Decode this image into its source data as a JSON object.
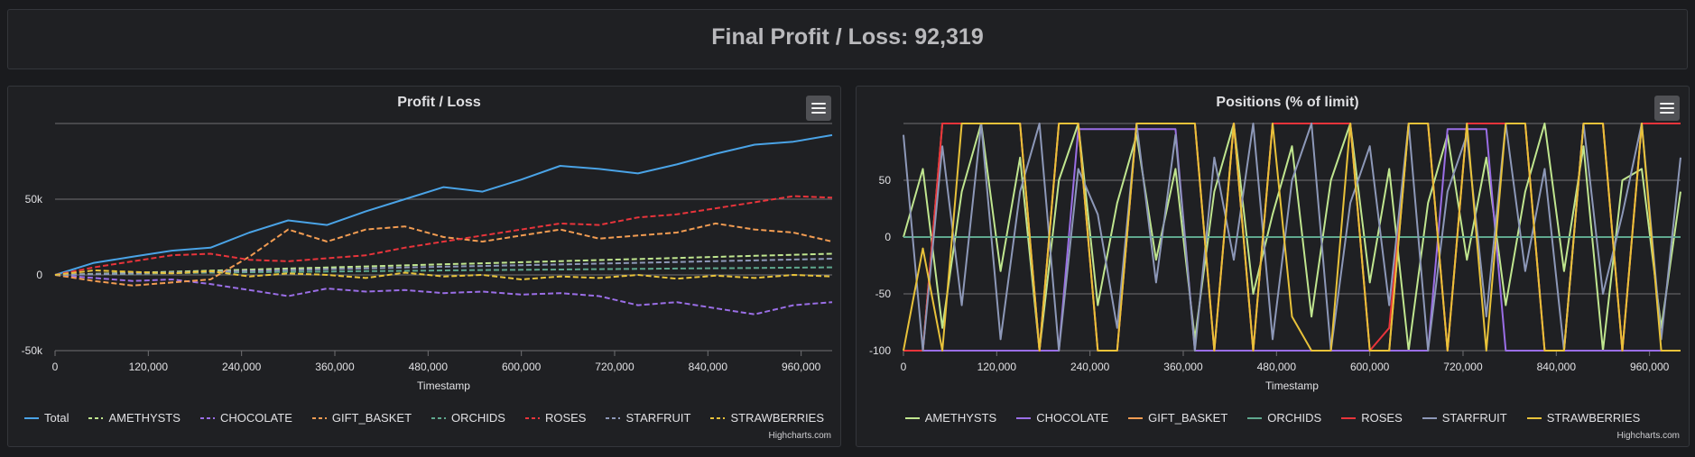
{
  "header": {
    "title": "Final Profit / Loss: 92,319"
  },
  "menu_label": "Chart context menu",
  "credits": "Highcharts.com",
  "colors": {
    "Total": "#4aa3e6",
    "AMETHYSTS": "#c0e68f",
    "CHOCOLATE": "#9a6ee6",
    "GIFT_BASKET": "#f29c52",
    "ORCHIDS": "#5fa88e",
    "ROSES": "#e8343b",
    "STARFRUIT": "#8d98b8",
    "STRAWBERRIES": "#e8c23a"
  },
  "chart_data": [
    {
      "type": "line",
      "title": "Profit / Loss",
      "xlabel": "Timestamp",
      "ylabel": "",
      "xlim": [
        0,
        999900
      ],
      "ylim": [
        -50000,
        100000
      ],
      "x_ticks": [
        "0",
        "120,000",
        "240,000",
        "360,000",
        "480,000",
        "600,000",
        "720,000",
        "840,000",
        "960,000"
      ],
      "y_ticks": [
        "-50k",
        "0",
        "50k"
      ],
      "y_tick_values": [
        -50000,
        0,
        50000
      ],
      "grid_lines": [
        -50000,
        0,
        50000,
        100000
      ],
      "legend_position": "bottom-center",
      "x": [
        0,
        50000,
        100000,
        150000,
        200000,
        250000,
        300000,
        350000,
        400000,
        450000,
        500000,
        550000,
        600000,
        650000,
        700000,
        750000,
        800000,
        850000,
        900000,
        950000,
        999900
      ],
      "series": [
        {
          "name": "Total",
          "dash": "solid",
          "values": [
            0,
            8000,
            12000,
            16000,
            18000,
            28000,
            36000,
            33000,
            42000,
            50000,
            58000,
            55000,
            63000,
            72000,
            70000,
            67000,
            73000,
            80000,
            86000,
            88000,
            92319
          ]
        },
        {
          "name": "AMETHYSTS",
          "dash": "dash",
          "values": [
            0,
            700,
            1400,
            2100,
            2800,
            3500,
            4200,
            4900,
            5600,
            6300,
            7000,
            7700,
            8400,
            9100,
            9800,
            10500,
            11200,
            11900,
            12600,
            13300,
            14000
          ]
        },
        {
          "name": "CHOCOLATE",
          "dash": "dash",
          "values": [
            0,
            -2000,
            -4000,
            -3000,
            -6000,
            -10000,
            -14000,
            -9000,
            -11000,
            -10000,
            -12000,
            -11000,
            -13000,
            -12000,
            -14000,
            -20000,
            -18000,
            -22000,
            -26000,
            -20000,
            -18000
          ]
        },
        {
          "name": "GIFT_BASKET",
          "dash": "dash",
          "values": [
            0,
            -4000,
            -7000,
            -5000,
            -3000,
            12000,
            30000,
            22000,
            30000,
            32000,
            25000,
            22000,
            26000,
            30000,
            24000,
            26000,
            28000,
            34000,
            30000,
            28000,
            22000
          ]
        },
        {
          "name": "ORCHIDS",
          "dash": "dash",
          "values": [
            0,
            500,
            800,
            1200,
            1500,
            1800,
            2000,
            2200,
            2500,
            2700,
            3000,
            3200,
            3400,
            3600,
            3800,
            4000,
            4200,
            4400,
            4600,
            4800,
            5000
          ]
        },
        {
          "name": "ROSES",
          "dash": "dash",
          "values": [
            0,
            5000,
            9000,
            13000,
            14000,
            10000,
            9000,
            11000,
            13000,
            18000,
            22000,
            26000,
            30000,
            34000,
            33000,
            38000,
            40000,
            44000,
            48000,
            52000,
            51000
          ]
        },
        {
          "name": "STARFRUIT",
          "dash": "dash",
          "values": [
            0,
            500,
            1000,
            1600,
            2100,
            2700,
            3200,
            3800,
            4300,
            4900,
            5400,
            5900,
            6400,
            6900,
            7500,
            8000,
            8500,
            9100,
            9600,
            10200,
            10700
          ]
        },
        {
          "name": "STRAWBERRIES",
          "dash": "dash",
          "values": [
            0,
            3000,
            2000,
            1000,
            2500,
            -1000,
            1000,
            0,
            -2000,
            1500,
            -1000,
            0,
            -3000,
            -1000,
            -2000,
            0,
            -2500,
            -500,
            -2000,
            0,
            -1000
          ]
        }
      ]
    },
    {
      "type": "line",
      "title": "Positions (% of limit)",
      "xlabel": "Timestamp",
      "ylabel": "",
      "xlim": [
        0,
        999900
      ],
      "ylim": [
        -100,
        100
      ],
      "x_ticks": [
        "0",
        "120,000",
        "240,000",
        "360,000",
        "480,000",
        "600,000",
        "720,000",
        "840,000",
        "960,000"
      ],
      "y_ticks": [
        "-100",
        "-50",
        "0",
        "50"
      ],
      "y_tick_values": [
        -100,
        -50,
        0,
        50
      ],
      "grid_lines": [
        -100,
        -50,
        0,
        50,
        100
      ],
      "legend_position": "bottom-center",
      "x": [
        0,
        25000,
        50000,
        75000,
        100000,
        125000,
        150000,
        175000,
        200000,
        225000,
        250000,
        275000,
        300000,
        325000,
        350000,
        375000,
        400000,
        425000,
        450000,
        475000,
        500000,
        525000,
        550000,
        575000,
        600000,
        625000,
        650000,
        675000,
        700000,
        725000,
        750000,
        775000,
        800000,
        825000,
        850000,
        875000,
        900000,
        925000,
        950000,
        975000,
        999900
      ],
      "series": [
        {
          "name": "AMETHYSTS",
          "dash": "solid",
          "values": [
            0,
            60,
            -80,
            40,
            100,
            -30,
            70,
            -100,
            50,
            100,
            -60,
            30,
            90,
            -20,
            60,
            -90,
            40,
            100,
            -50,
            20,
            80,
            -70,
            50,
            100,
            -40,
            60,
            -100,
            30,
            90,
            -20,
            70,
            -60,
            40,
            100,
            -30,
            80,
            -100,
            50,
            60,
            -80,
            40
          ]
        },
        {
          "name": "CHOCOLATE",
          "dash": "solid",
          "values": [
            -100,
            -100,
            -100,
            -100,
            -100,
            -100,
            -100,
            -100,
            -100,
            95,
            95,
            95,
            95,
            95,
            95,
            -100,
            -100,
            -100,
            -100,
            -100,
            -100,
            -100,
            -100,
            -100,
            -100,
            -100,
            -100,
            -100,
            95,
            95,
            95,
            -100,
            -100,
            -100,
            -100,
            -100,
            -100,
            -100,
            -100,
            -100,
            -100
          ]
        },
        {
          "name": "GIFT_BASKET",
          "dash": "solid",
          "values": [
            -100,
            -100,
            100,
            100,
            100,
            100,
            100,
            -100,
            100,
            100,
            -100,
            -100,
            100,
            100,
            100,
            100,
            -100,
            100,
            -100,
            100,
            100,
            100,
            100,
            100,
            -100,
            -100,
            100,
            100,
            -100,
            100,
            100,
            100,
            100,
            -100,
            -100,
            100,
            100,
            -100,
            100,
            100,
            100
          ]
        },
        {
          "name": "ORCHIDS",
          "dash": "solid",
          "values": [
            0,
            0,
            0,
            0,
            0,
            0,
            0,
            0,
            0,
            0,
            0,
            0,
            0,
            0,
            0,
            0,
            0,
            0,
            0,
            0,
            0,
            0,
            0,
            0,
            0,
            0,
            0,
            0,
            0,
            0,
            0,
            0,
            0,
            0,
            0,
            0,
            0,
            0,
            0,
            0,
            0
          ]
        },
        {
          "name": "ROSES",
          "dash": "solid",
          "values": [
            -100,
            -100,
            100,
            100,
            100,
            100,
            100,
            -100,
            100,
            100,
            -100,
            -100,
            100,
            100,
            100,
            100,
            -100,
            100,
            -100,
            100,
            100,
            100,
            100,
            100,
            -100,
            -80,
            100,
            100,
            -100,
            100,
            100,
            100,
            100,
            -100,
            -100,
            100,
            100,
            -100,
            100,
            100,
            100
          ]
        },
        {
          "name": "STARFRUIT",
          "dash": "solid",
          "values": [
            90,
            -100,
            80,
            -60,
            100,
            -90,
            40,
            100,
            -100,
            60,
            20,
            -80,
            100,
            -40,
            90,
            -100,
            70,
            -20,
            100,
            -90,
            50,
            100,
            -100,
            30,
            80,
            -60,
            100,
            -100,
            40,
            90,
            -70,
            100,
            -30,
            60,
            -100,
            100,
            -50,
            20,
            100,
            -90,
            70
          ]
        },
        {
          "name": "STRAWBERRIES",
          "dash": "solid",
          "values": [
            -100,
            -10,
            -100,
            100,
            100,
            100,
            100,
            -100,
            100,
            100,
            -100,
            -100,
            100,
            100,
            100,
            100,
            -100,
            100,
            -100,
            100,
            -70,
            -100,
            -100,
            100,
            -100,
            -100,
            100,
            100,
            -100,
            100,
            -100,
            100,
            100,
            -100,
            -100,
            100,
            100,
            -100,
            100,
            -100,
            -100
          ]
        }
      ]
    }
  ]
}
